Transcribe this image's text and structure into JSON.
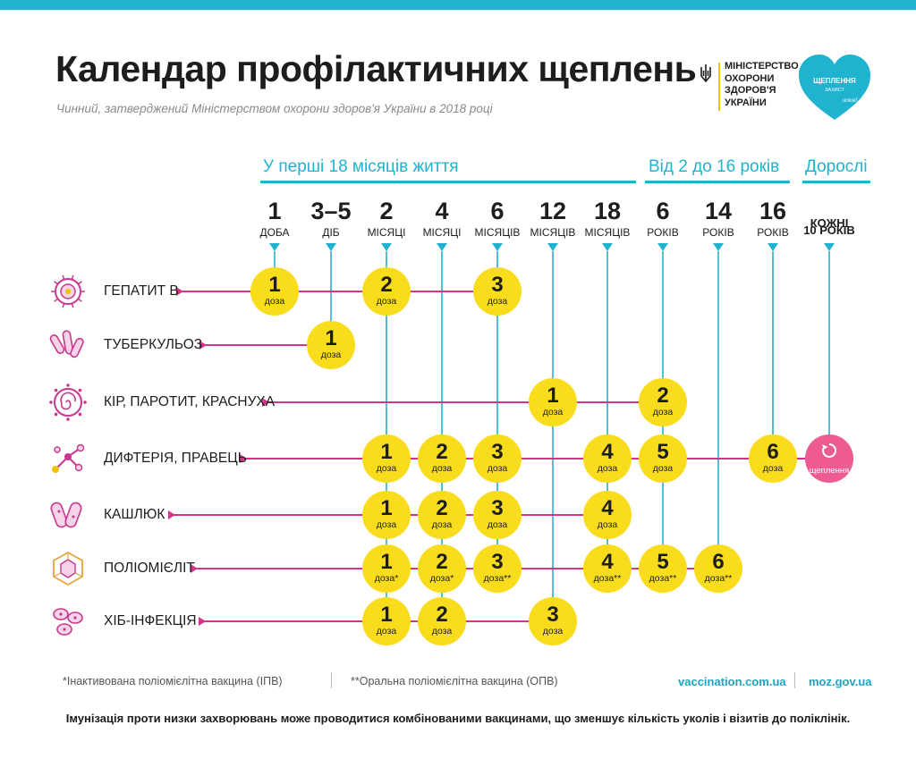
{
  "header": {
    "title": "Календар профілактичних щеплень",
    "subtitle": "Чинний, затверджений Міністерством охорони здоров'я України в 2018 році"
  },
  "ministry": {
    "lines": [
      "МІНІСТЕРСТВО",
      "ОХОРОНИ",
      "ЗДОРОВ'Я",
      "УКРАЇНИ"
    ]
  },
  "badge": {
    "title": "ЩЕПЛЕННЯ",
    "subtitle": "ЗАХИСТ",
    "brand": "unicef"
  },
  "periods": [
    {
      "label": "У перші 18 місяців життя"
    },
    {
      "label": "Від 2 до 16 років"
    },
    {
      "label": "Дорослі"
    }
  ],
  "ages": [
    {
      "num": "1",
      "unit": "ДОБА"
    },
    {
      "num": "3–5",
      "unit": "ДІБ"
    },
    {
      "num": "2",
      "unit": "МІСЯЦІ"
    },
    {
      "num": "4",
      "unit": "МІСЯЦІ"
    },
    {
      "num": "6",
      "unit": "МІСЯЦІВ"
    },
    {
      "num": "12",
      "unit": "МІСЯЦІВ"
    },
    {
      "num": "18",
      "unit": "МІСЯЦІВ"
    },
    {
      "num": "6",
      "unit": "РОКІВ"
    },
    {
      "num": "14",
      "unit": "РОКІВ"
    },
    {
      "num": "16",
      "unit": "РОКІВ"
    },
    {
      "num": "КОЖНІ",
      "unit": "10 РОКІВ"
    }
  ],
  "dose_label": "доза",
  "booster_label": "щеплення",
  "diseases": [
    {
      "name": "ГЕПАТИТ B",
      "icon": "virus-ring-icon",
      "doses": [
        {
          "col": 0,
          "n": "1"
        },
        {
          "col": 2,
          "n": "2"
        },
        {
          "col": 4,
          "n": "3"
        }
      ]
    },
    {
      "name": "ТУБЕРКУЛЬОЗ",
      "icon": "bacilli-icon",
      "doses": [
        {
          "col": 1,
          "n": "1"
        }
      ]
    },
    {
      "name": "КІР, ПАРОТИТ, КРАСНУХА",
      "icon": "spiral-virus-icon",
      "doses": [
        {
          "col": 5,
          "n": "1"
        },
        {
          "col": 7,
          "n": "2"
        }
      ]
    },
    {
      "name": "ДИФТЕРІЯ, ПРАВЕЦЬ",
      "icon": "molecules-icon",
      "doses": [
        {
          "col": 2,
          "n": "1"
        },
        {
          "col": 3,
          "n": "2"
        },
        {
          "col": 4,
          "n": "3"
        },
        {
          "col": 6,
          "n": "4"
        },
        {
          "col": 7,
          "n": "5"
        },
        {
          "col": 9,
          "n": "6"
        }
      ],
      "booster_col": 10
    },
    {
      "name": "КАШЛЮК",
      "icon": "rod-bacteria-icon",
      "doses": [
        {
          "col": 2,
          "n": "1"
        },
        {
          "col": 3,
          "n": "2"
        },
        {
          "col": 4,
          "n": "3"
        },
        {
          "col": 6,
          "n": "4"
        }
      ]
    },
    {
      "name": "ПОЛІОМІЄЛІТ",
      "icon": "polyhedron-virus-icon",
      "doses": [
        {
          "col": 2,
          "n": "1",
          "mark": "*"
        },
        {
          "col": 3,
          "n": "2",
          "mark": "*"
        },
        {
          "col": 4,
          "n": "3",
          "mark": "**"
        },
        {
          "col": 6,
          "n": "4",
          "mark": "**"
        },
        {
          "col": 7,
          "n": "5",
          "mark": "**"
        },
        {
          "col": 8,
          "n": "6",
          "mark": "**"
        }
      ]
    },
    {
      "name": "ХІБ-ІНФЕКЦІЯ",
      "icon": "cocci-icon",
      "doses": [
        {
          "col": 2,
          "n": "1"
        },
        {
          "col": 3,
          "n": "2"
        },
        {
          "col": 5,
          "n": "3"
        }
      ]
    }
  ],
  "footnotes": {
    "ipv": "*Інактивована поліомієлітна вакцина (ІПВ)",
    "opv": "**Оральна поліомієлітна вакцина (ОПВ)"
  },
  "links": [
    "vaccination.com.ua",
    "moz.gov.ua"
  ],
  "bottom_note": "Імунізація проти низки захворювань може проводитися комбінованими вакцинами, що зменшує кількість уколів і візитів до поліклінік.",
  "colors": {
    "accent": "#1fb3d0",
    "dose": "#f9dc1c",
    "booster": "#ee5b93",
    "line": "#d6338b",
    "heart": "#1fb3d0"
  }
}
